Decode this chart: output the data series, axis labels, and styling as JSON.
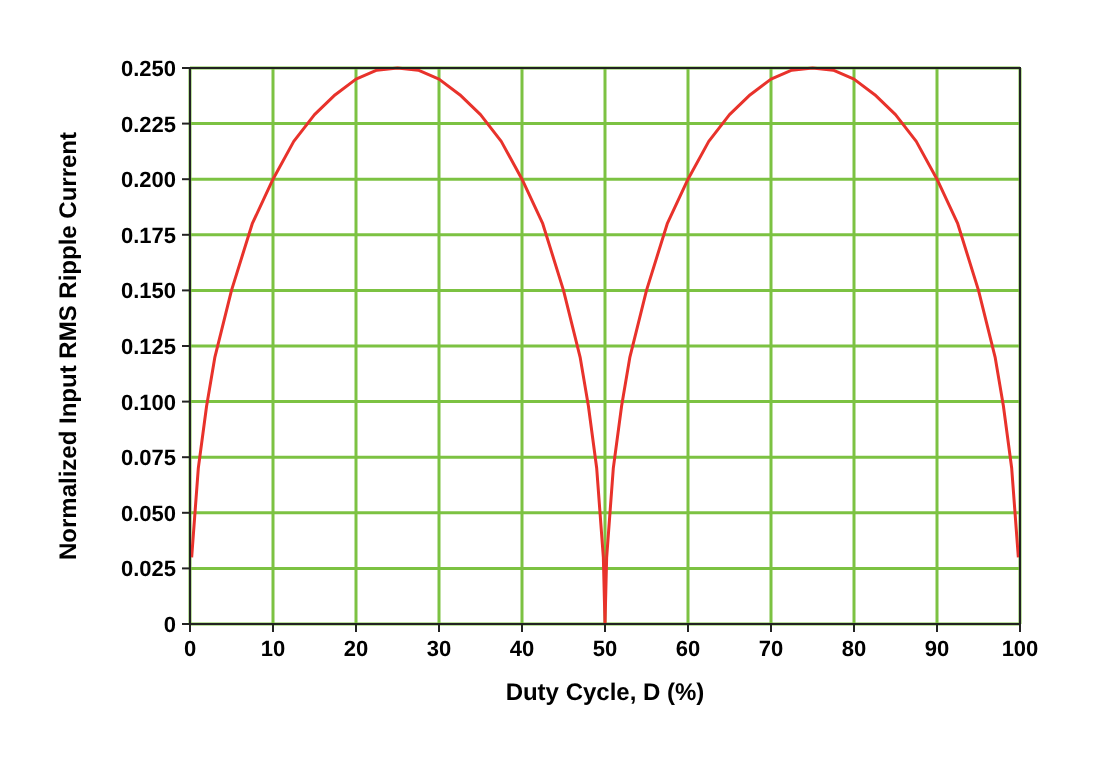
{
  "chart_data": {
    "type": "line",
    "xlabel": "Duty Cycle, D (%)",
    "ylabel": "Normalized Input RMS Ripple Current",
    "xlim": [
      0,
      100
    ],
    "xticks": [
      0,
      10,
      20,
      30,
      40,
      50,
      60,
      70,
      80,
      90,
      100
    ],
    "ylim": [
      0,
      0.25
    ],
    "yticks": [
      0,
      {
        "value": 0.025,
        "label": "0.025"
      },
      {
        "value": 0.05,
        "label": "0.050"
      },
      {
        "value": 0.075,
        "label": "0.075"
      },
      {
        "value": 0.1,
        "label": "0.100"
      },
      {
        "value": 0.125,
        "label": "0.125"
      },
      {
        "value": 0.15,
        "label": "0.150"
      },
      {
        "value": 0.175,
        "label": "0.175"
      },
      {
        "value": 0.2,
        "label": "0.200"
      },
      {
        "value": 0.225,
        "label": "0.225"
      },
      {
        "value": 0.25,
        "label": "0.250"
      }
    ],
    "grid": true,
    "marker": "none",
    "line_style": "solid",
    "x": [
      0.2,
      1,
      2,
      3,
      5,
      7.5,
      10,
      12.5,
      15,
      17.5,
      20,
      22.5,
      25,
      27.5,
      30,
      32.5,
      35,
      37.5,
      40,
      42.5,
      45,
      47,
      48,
      49,
      49.8,
      50,
      50.2,
      51,
      52,
      53,
      55,
      57.5,
      60,
      62.5,
      65,
      67.5,
      70,
      72.5,
      75,
      77.5,
      80,
      82.5,
      85,
      87.5,
      90,
      92.5,
      95,
      97,
      98,
      99,
      99.8
    ],
    "series": [
      {
        "color": "#e8322b",
        "values": [
          0.03,
          0.07,
          0.098,
          0.12,
          0.15,
          0.18,
          0.2,
          0.217,
          0.229,
          0.238,
          0.245,
          0.249,
          0.25,
          0.249,
          0.245,
          0.238,
          0.229,
          0.217,
          0.2,
          0.18,
          0.15,
          0.12,
          0.098,
          0.07,
          0.03,
          0,
          0.03,
          0.07,
          0.098,
          0.12,
          0.15,
          0.18,
          0.2,
          0.217,
          0.229,
          0.238,
          0.245,
          0.249,
          0.25,
          0.249,
          0.245,
          0.238,
          0.229,
          0.217,
          0.2,
          0.18,
          0.15,
          0.12,
          0.098,
          0.07,
          0.03
        ]
      }
    ]
  }
}
